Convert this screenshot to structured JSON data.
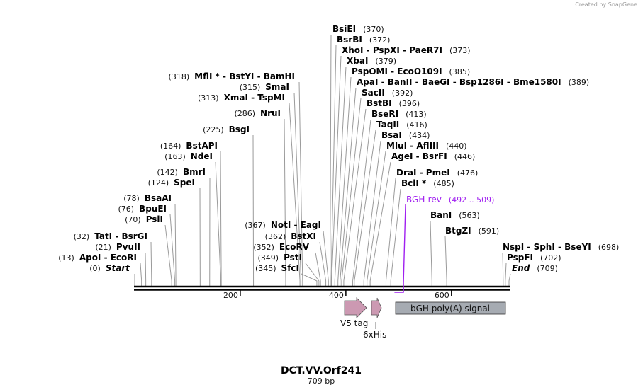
{
  "credit": "Created by SnapGene",
  "map": {
    "title": "DCT.VV.Orf241",
    "length_label": "709 bp",
    "length_bp": 709,
    "ticks": [
      "200",
      "400",
      "600"
    ],
    "tick_values": [
      200,
      400,
      600
    ]
  },
  "sites": [
    {
      "names": [
        "Start"
      ],
      "pos": "(0)",
      "bp": 0,
      "italic": true
    },
    {
      "names": [
        "ApoI",
        "EcoRI"
      ],
      "pos": "(13)",
      "bp": 13
    },
    {
      "names": [
        "PvuII"
      ],
      "pos": "(21)",
      "bp": 21
    },
    {
      "names": [
        "TatI",
        "BsrGI"
      ],
      "pos": "(32)",
      "bp": 32
    },
    {
      "names": [
        "PsiI"
      ],
      "pos": "(70)",
      "bp": 70
    },
    {
      "names": [
        "BpuEI"
      ],
      "pos": "(76)",
      "bp": 76
    },
    {
      "names": [
        "BsaAI"
      ],
      "pos": "(78)",
      "bp": 78
    },
    {
      "names": [
        "SpeI"
      ],
      "pos": "(124)",
      "bp": 124
    },
    {
      "names": [
        "BmrI"
      ],
      "pos": "(142)",
      "bp": 142
    },
    {
      "names": [
        "NdeI"
      ],
      "pos": "(163)",
      "bp": 163
    },
    {
      "names": [
        "BstAPI"
      ],
      "pos": "(164)",
      "bp": 164
    },
    {
      "names": [
        "BsgI"
      ],
      "pos": "(225)",
      "bp": 225
    },
    {
      "names": [
        "NruI"
      ],
      "pos": "(286)",
      "bp": 286
    },
    {
      "names": [
        "XmaI",
        "TspMI"
      ],
      "pos": "(313)",
      "bp": 313
    },
    {
      "names": [
        "SmaI"
      ],
      "pos": "(315)",
      "bp": 315
    },
    {
      "names": [
        "MflI *",
        "BstYI",
        "BamHI"
      ],
      "pos": "(318)",
      "bp": 318
    },
    {
      "names": [
        "SfcI"
      ],
      "pos": "(345)",
      "bp": 345
    },
    {
      "names": [
        "PstI"
      ],
      "pos": "(349)",
      "bp": 349
    },
    {
      "names": [
        "EcoRV"
      ],
      "pos": "(352)",
      "bp": 352
    },
    {
      "names": [
        "BstXI"
      ],
      "pos": "(362)",
      "bp": 362
    },
    {
      "names": [
        "NotI",
        "EagI"
      ],
      "pos": "(367)",
      "bp": 367
    },
    {
      "names": [
        "BsiEI"
      ],
      "pos": "(370)",
      "bp": 370
    },
    {
      "names": [
        "BsrBI"
      ],
      "pos": "(372)",
      "bp": 372
    },
    {
      "names": [
        "XhoI",
        "PspXI",
        "PaeR7I"
      ],
      "pos": "(373)",
      "bp": 373
    },
    {
      "names": [
        "XbaI"
      ],
      "pos": "(379)",
      "bp": 379
    },
    {
      "names": [
        "PspOMI",
        "EcoO109I"
      ],
      "pos": "(385)",
      "bp": 385
    },
    {
      "names": [
        "ApaI",
        "BanII",
        "BaeGI",
        "Bsp1286I",
        "Bme1580I"
      ],
      "pos": "(389)",
      "bp": 389
    },
    {
      "names": [
        "SacII"
      ],
      "pos": "(392)",
      "bp": 392
    },
    {
      "names": [
        "BstBI"
      ],
      "pos": "(396)",
      "bp": 396
    },
    {
      "names": [
        "BseRI"
      ],
      "pos": "(413)",
      "bp": 413
    },
    {
      "names": [
        "TaqII"
      ],
      "pos": "(416)",
      "bp": 416
    },
    {
      "names": [
        "BsaI"
      ],
      "pos": "(434)",
      "bp": 434
    },
    {
      "names": [
        "MluI",
        "AflIII"
      ],
      "pos": "(440)",
      "bp": 440
    },
    {
      "names": [
        "AgeI",
        "BsrFI"
      ],
      "pos": "(446)",
      "bp": 446
    },
    {
      "names": [
        "DraI",
        "PmeI"
      ],
      "pos": "(476)",
      "bp": 476
    },
    {
      "names": [
        "BclI *"
      ],
      "pos": "(485)",
      "bp": 485
    },
    {
      "names": [
        "BanI"
      ],
      "pos": "(563)",
      "bp": 563
    },
    {
      "names": [
        "BtgZI"
      ],
      "pos": "(591)",
      "bp": 591
    },
    {
      "names": [
        "NspI",
        "SphI",
        "BseYI"
      ],
      "pos": "(698)",
      "bp": 698
    },
    {
      "names": [
        "PspFI"
      ],
      "pos": "(702)",
      "bp": 702
    },
    {
      "names": [
        "End"
      ],
      "pos": "(709)",
      "bp": 709,
      "italic": true
    }
  ],
  "primer": {
    "name": "BGH-rev",
    "range": "(492 .. 509)",
    "start": 492,
    "end": 509,
    "color": "#a020f0"
  },
  "features": [
    {
      "name": "V5 tag",
      "type": "arrow",
      "color": "#cc99b2"
    },
    {
      "name": "6xHis",
      "type": "arrow",
      "color": "#cc99b2"
    },
    {
      "name": "bGH poly(A) signal",
      "type": "box",
      "color": "#a6abb2"
    }
  ]
}
